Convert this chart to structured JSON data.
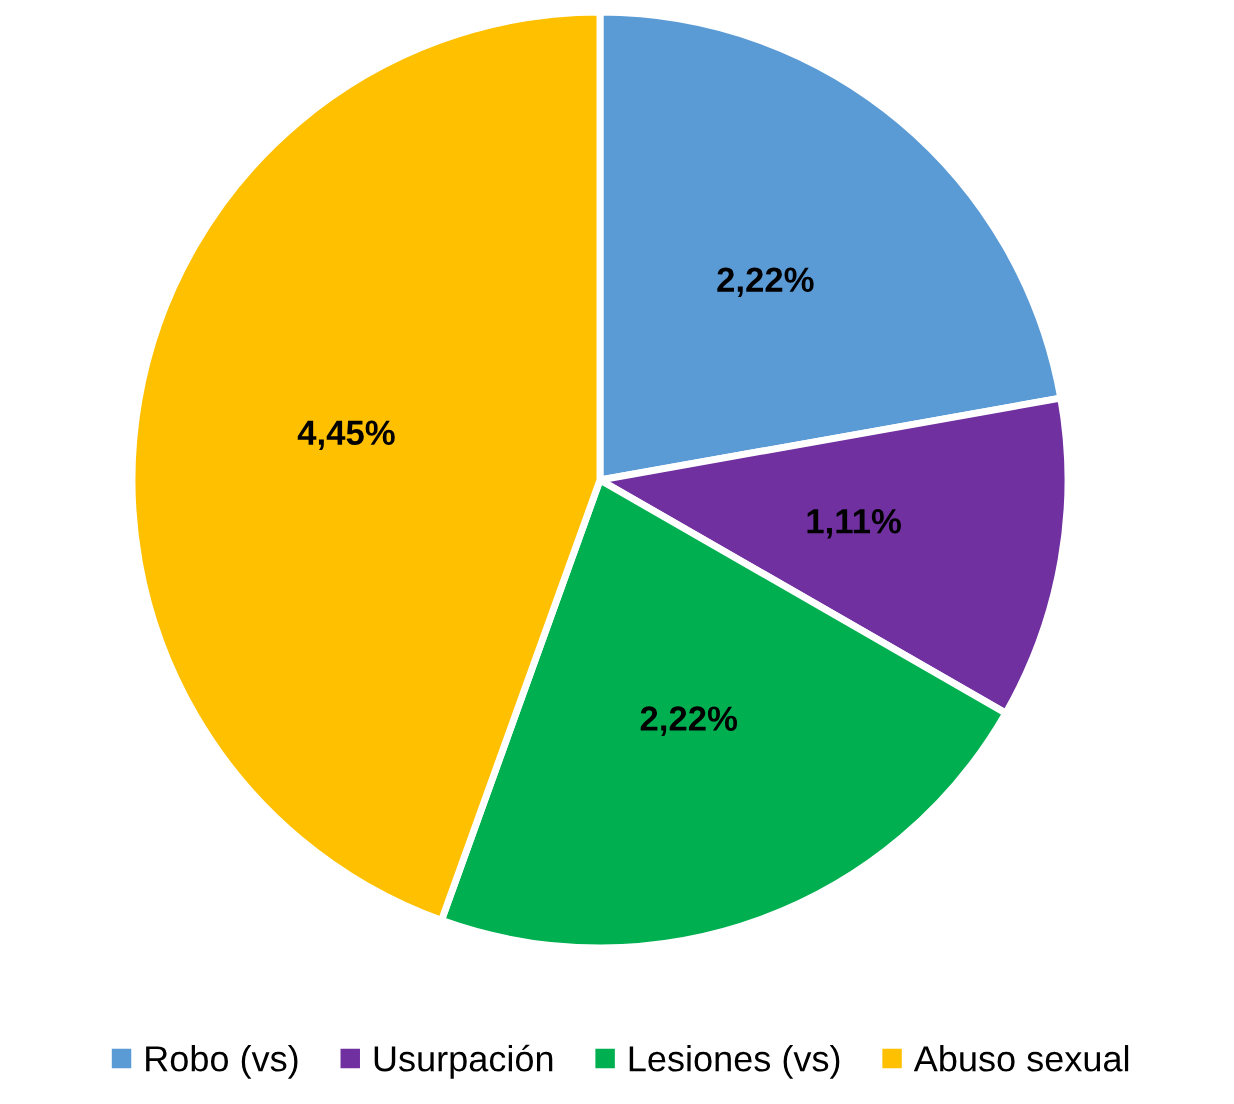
{
  "chart_data": {
    "type": "pie",
    "categories": [
      "Robo (vs)",
      "Usurpación",
      "Lesiones (vs)",
      "Abuso sexual"
    ],
    "values": [
      2.22,
      1.11,
      2.22,
      4.45
    ],
    "colors": [
      "#5b9bd5",
      "#7030a0",
      "#00b050",
      "#ffc000"
    ],
    "value_labels": [
      "2,22%",
      "1,11%",
      "2,22%",
      "4,45%"
    ],
    "legend": "bottom"
  }
}
